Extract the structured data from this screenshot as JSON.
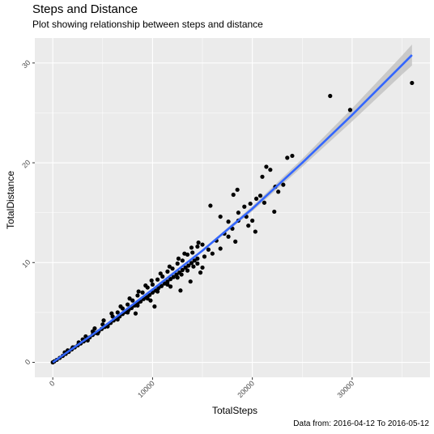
{
  "chart_data": {
    "type": "scatter",
    "title": "Steps and Distance",
    "subtitle": "Plot showing relationship between steps and distance",
    "caption": "Data from: 2016-04-12 To 2016-05-12",
    "xlabel": "TotalSteps",
    "ylabel": "TotalDistance",
    "xlim": [
      -1800,
      37800
    ],
    "ylim": [
      -1.5,
      32.5
    ],
    "x_ticks": [
      0,
      10000,
      20000,
      30000
    ],
    "y_ticks": [
      0,
      10,
      20,
      30
    ],
    "grid": true,
    "panel_background": "#EBEBEB",
    "point_color": "#000000",
    "line_color": "#3366FF",
    "band_color": "#BDBDBD",
    "series": [
      {
        "name": "",
        "type": "scatter",
        "points": [
          [
            0,
            0
          ],
          [
            150,
            0.1
          ],
          [
            400,
            0.25
          ],
          [
            700,
            0.45
          ],
          [
            1000,
            0.65
          ],
          [
            1300,
            0.85
          ],
          [
            1600,
            1.05
          ],
          [
            1900,
            1.3
          ],
          [
            2200,
            1.5
          ],
          [
            2500,
            1.7
          ],
          [
            2800,
            1.9
          ],
          [
            3100,
            2.1
          ],
          [
            3400,
            2.3
          ],
          [
            3700,
            2.5
          ],
          [
            4000,
            2.75
          ],
          [
            4300,
            2.95
          ],
          [
            4600,
            3.1
          ],
          [
            4900,
            3.35
          ],
          [
            5200,
            3.55
          ],
          [
            5500,
            3.75
          ],
          [
            5800,
            3.95
          ],
          [
            6100,
            4.2
          ],
          [
            6400,
            4.4
          ],
          [
            6700,
            4.6
          ],
          [
            7000,
            4.85
          ],
          [
            7300,
            5.05
          ],
          [
            7600,
            5.25
          ],
          [
            7900,
            5.45
          ],
          [
            8200,
            5.7
          ],
          [
            8500,
            5.9
          ],
          [
            8800,
            6.1
          ],
          [
            9100,
            6.35
          ],
          [
            9400,
            6.55
          ],
          [
            9700,
            6.75
          ],
          [
            10000,
            7.0
          ],
          [
            10300,
            7.2
          ],
          [
            10600,
            7.45
          ],
          [
            10900,
            7.65
          ],
          [
            11200,
            7.9
          ],
          [
            11500,
            8.1
          ],
          [
            11800,
            8.35
          ],
          [
            12100,
            8.55
          ],
          [
            12400,
            8.8
          ],
          [
            12700,
            9.0
          ],
          [
            13000,
            9.25
          ],
          [
            13300,
            9.5
          ],
          [
            13600,
            9.7
          ],
          [
            13900,
            9.95
          ],
          [
            14200,
            10.2
          ],
          [
            14500,
            10.4
          ],
          [
            1200,
            1.0
          ],
          [
            2000,
            1.5
          ],
          [
            3000,
            2.3
          ],
          [
            4000,
            3.1
          ],
          [
            5000,
            3.8
          ],
          [
            6000,
            4.6
          ],
          [
            7000,
            5.4
          ],
          [
            8000,
            6.2
          ],
          [
            9000,
            7.0
          ],
          [
            10000,
            7.8
          ],
          [
            11000,
            8.6
          ],
          [
            12000,
            9.4
          ],
          [
            13000,
            10.2
          ],
          [
            14000,
            11.0
          ],
          [
            15000,
            11.8
          ],
          [
            6500,
            5.0
          ],
          [
            7500,
            5.8
          ],
          [
            8500,
            6.7
          ],
          [
            9500,
            7.5
          ],
          [
            10500,
            8.3
          ],
          [
            11500,
            9.1
          ],
          [
            12500,
            9.9
          ],
          [
            13500,
            10.8
          ],
          [
            14500,
            11.6
          ],
          [
            3500,
            2.2
          ],
          [
            4500,
            2.9
          ],
          [
            5500,
            3.6
          ],
          [
            6500,
            4.3
          ],
          [
            7500,
            5.0
          ],
          [
            8500,
            5.7
          ],
          [
            9500,
            6.4
          ],
          [
            10500,
            7.1
          ],
          [
            11500,
            7.8
          ],
          [
            12500,
            8.5
          ],
          [
            13500,
            9.2
          ],
          [
            14500,
            9.9
          ],
          [
            10200,
            5.6
          ],
          [
            12800,
            7.2
          ],
          [
            13800,
            8.1
          ],
          [
            14800,
            9.0
          ],
          [
            15200,
            10.6
          ],
          [
            15600,
            11.3
          ],
          [
            16000,
            10.9
          ],
          [
            16400,
            12.2
          ],
          [
            16800,
            11.4
          ],
          [
            17200,
            12.9
          ],
          [
            17600,
            12.6
          ],
          [
            18000,
            13.4
          ],
          [
            18300,
            12.1
          ],
          [
            18600,
            14.2
          ],
          [
            15800,
            15.7
          ],
          [
            16800,
            14.6
          ],
          [
            17600,
            14.1
          ],
          [
            18100,
            16.8
          ],
          [
            18600,
            15.0
          ],
          [
            19200,
            15.6
          ],
          [
            19400,
            14.6
          ],
          [
            20000,
            14.2
          ],
          [
            19800,
            15.9
          ],
          [
            20400,
            16.4
          ],
          [
            20800,
            16.7
          ],
          [
            21200,
            16.0
          ],
          [
            21000,
            18.6
          ],
          [
            21400,
            19.6
          ],
          [
            21800,
            19.3
          ],
          [
            22300,
            17.6
          ],
          [
            22600,
            17.1
          ],
          [
            22200,
            15.1
          ],
          [
            23100,
            17.8
          ],
          [
            23500,
            20.5
          ],
          [
            24000,
            20.7
          ],
          [
            18500,
            17.3
          ],
          [
            19600,
            13.7
          ],
          [
            20300,
            13.1
          ],
          [
            27800,
            26.7
          ],
          [
            29800,
            25.3
          ],
          [
            36000,
            28.0
          ],
          [
            1500,
            1.2
          ],
          [
            2600,
            2.0
          ],
          [
            3300,
            2.6
          ],
          [
            4200,
            3.4
          ],
          [
            5100,
            4.2
          ],
          [
            5900,
            4.9
          ],
          [
            6800,
            5.6
          ],
          [
            7700,
            6.4
          ],
          [
            8600,
            7.1
          ],
          [
            9300,
            7.7
          ],
          [
            9900,
            8.2
          ],
          [
            10800,
            8.9
          ],
          [
            11700,
            9.6
          ],
          [
            12600,
            10.4
          ],
          [
            13200,
            10.9
          ],
          [
            13900,
            11.5
          ],
          [
            14600,
            12.0
          ],
          [
            8300,
            4.9
          ],
          [
            9800,
            6.2
          ],
          [
            11800,
            7.6
          ],
          [
            12900,
            8.8
          ],
          [
            14100,
            9.6
          ],
          [
            15000,
            9.5
          ]
        ]
      },
      {
        "name": "",
        "type": "line",
        "x": [
          0,
          5000,
          10000,
          15000,
          20000,
          25000,
          30000,
          35000,
          36000
        ],
        "y": [
          0.0,
          3.5,
          7.3,
          11.2,
          15.4,
          20.0,
          24.8,
          29.8,
          30.8
        ],
        "band_half_width": [
          0.08,
          0.06,
          0.06,
          0.1,
          0.25,
          0.4,
          0.65,
          0.95,
          1.05
        ]
      }
    ]
  }
}
